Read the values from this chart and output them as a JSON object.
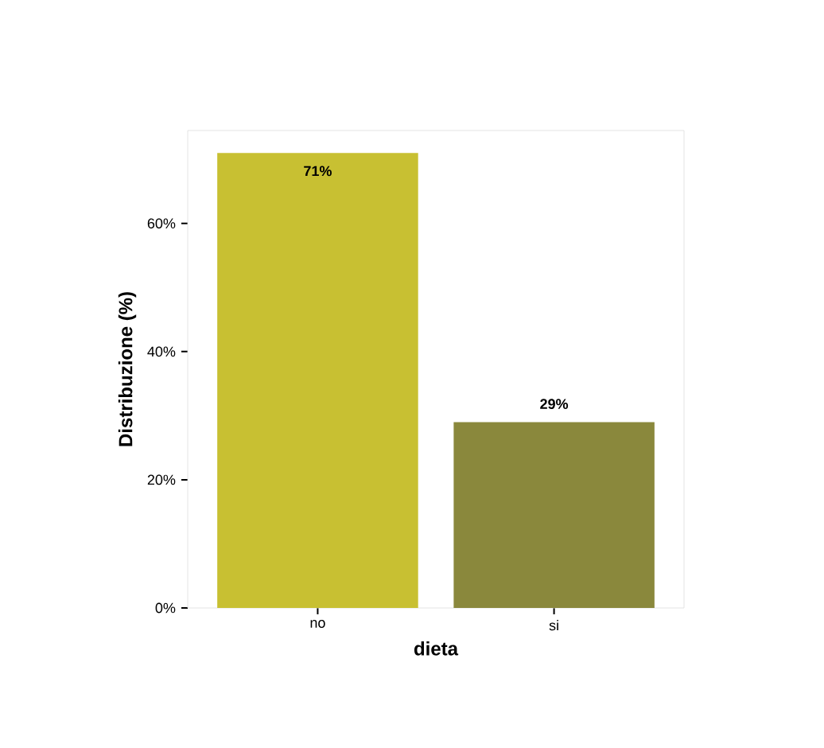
{
  "chart_data": {
    "type": "bar",
    "xlabel": "dieta",
    "ylabel": "Distribuzione (%)",
    "categories": [
      "no",
      "si"
    ],
    "values": [
      71,
      29
    ],
    "colors": [
      "#c8c032",
      "#8a883c"
    ],
    "value_labels": [
      "71%",
      "29%"
    ],
    "ylim": [
      0,
      74.5
    ],
    "yticks": [
      {
        "value": 0,
        "label": "0%"
      },
      {
        "value": 20,
        "label": "20%"
      },
      {
        "value": 40,
        "label": "40%"
      },
      {
        "value": 60,
        "label": "60%"
      }
    ],
    "grid": false
  }
}
